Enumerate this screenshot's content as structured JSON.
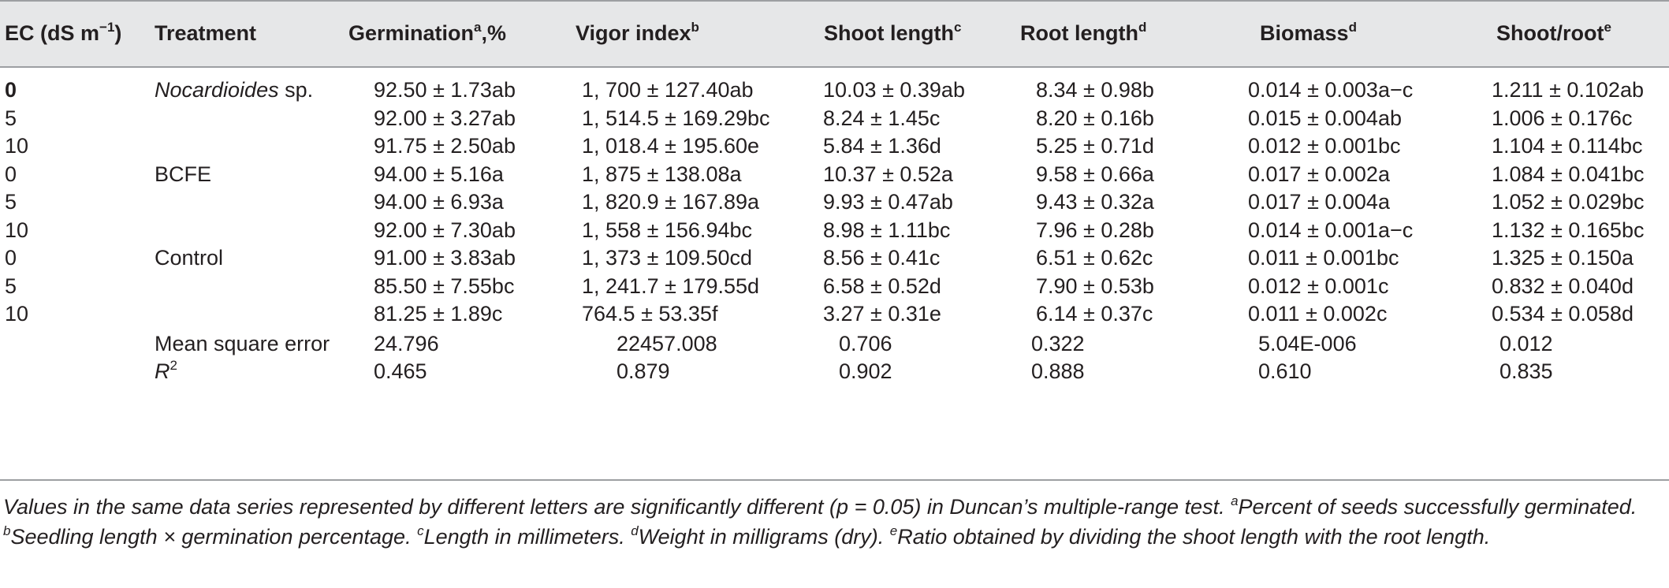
{
  "headers": {
    "ec": "EC (dS m",
    "ec_sup": "−1",
    "ec_close": ")",
    "treatment": "Treatment",
    "germination": "Germinationa",
    "germination_sup": "a",
    "germination_tail": ",%",
    "vigor": "Vigor index",
    "vigor_sup": "b",
    "shoot": "Shoot length",
    "shoot_sup": "c",
    "root": "Root length",
    "root_sup": "d",
    "biomass": "Biomass",
    "biomass_sup": "d",
    "ratio": "Shoot/root",
    "ratio_sup": "e"
  },
  "rows": [
    {
      "ec": "0",
      "treatment": "Nocardioides",
      "treatment_tail": " sp.",
      "germ": "92.50 ± 1.73ab",
      "vigor": "1, 700 ± 127.40ab",
      "shoot": "10.03 ± 0.39ab",
      "root": "8.34 ± 0.98b",
      "biomass": "0.014 ± 0.003a−c",
      "ratio": "1.211 ± 0.102ab"
    },
    {
      "ec": "5",
      "treatment": "",
      "treatment_tail": "",
      "germ": "92.00 ± 3.27ab",
      "vigor": "1, 514.5 ± 169.29bc",
      "shoot": "8.24 ± 1.45c",
      "root": "8.20 ± 0.16b",
      "biomass": "0.015 ± 0.004ab",
      "ratio": "1.006 ± 0.176c"
    },
    {
      "ec": "10",
      "treatment": "",
      "treatment_tail": "",
      "germ": "91.75 ± 2.50ab",
      "vigor": "1, 018.4 ± 195.60e",
      "shoot": "5.84 ± 1.36d",
      "root": "5.25 ± 0.71d",
      "biomass": "0.012 ± 0.001bc",
      "ratio": "1.104 ± 0.114bc"
    },
    {
      "ec": "0",
      "treatment": "BCFE",
      "treatment_tail": "",
      "germ": "94.00 ± 5.16a",
      "vigor": "1, 875 ± 138.08a",
      "shoot": "10.37 ± 0.52a",
      "root": "9.58 ± 0.66a",
      "biomass": "0.017 ± 0.002a",
      "ratio": "1.084 ± 0.041bc"
    },
    {
      "ec": "5",
      "treatment": "",
      "treatment_tail": "",
      "germ": "94.00 ± 6.93a",
      "vigor": "1, 820.9 ± 167.89a",
      "shoot": "9.93 ± 0.47ab",
      "root": "9.43 ± 0.32a",
      "biomass": "0.017 ± 0.004a",
      "ratio": "1.052 ± 0.029bc"
    },
    {
      "ec": "10",
      "treatment": "",
      "treatment_tail": "",
      "germ": "92.00 ± 7.30ab",
      "vigor": "1, 558 ± 156.94bc",
      "shoot": "8.98 ± 1.11bc",
      "root": "7.96 ± 0.28b",
      "biomass": "0.014 ± 0.001a−c",
      "ratio": "1.132 ± 0.165bc"
    },
    {
      "ec": "0",
      "treatment": "Control",
      "treatment_tail": "",
      "germ": "91.00 ± 3.83ab",
      "vigor": "1, 373 ± 109.50cd",
      "shoot": "8.56 ± 0.41c",
      "root": "6.51 ± 0.62c",
      "biomass": "0.011 ± 0.001bc",
      "ratio": "1.325 ± 0.150a"
    },
    {
      "ec": "5",
      "treatment": "",
      "treatment_tail": "",
      "germ": "85.50 ± 7.55bc",
      "vigor": "1, 241.7 ± 179.55d",
      "shoot": "6.58 ± 0.52d",
      "root": "7.90 ± 0.53b",
      "biomass": "0.012 ± 0.001c",
      "ratio": "0.832 ± 0.040d"
    },
    {
      "ec": "10",
      "treatment": "",
      "treatment_tail": "",
      "germ": "81.25 ± 1.89c",
      "vigor": "764.5 ± 53.35f",
      "shoot": "3.27 ± 0.31e",
      "root": "6.14 ± 0.37c",
      "biomass": "0.011 ± 0.002c",
      "ratio": "0.534 ± 0.058d"
    }
  ],
  "stats": [
    {
      "label": "Mean square error",
      "germ": "24.796",
      "vigor": "22457.008",
      "shoot": "0.706",
      "root": "0.322",
      "biomass": "5.04E-006",
      "ratio": "0.012"
    },
    {
      "label": "R",
      "label_sup": "2",
      "germ": "0.465",
      "vigor": "0.879",
      "shoot": "0.902",
      "root": "0.888",
      "biomass": "0.610",
      "ratio": "0.835"
    }
  ],
  "footnote": {
    "main": "Values in the same data series represented by different letters are significantly different (p = 0.05) in Duncan’s multiple-range test. ",
    "a_mark": "a",
    "a_text": "Percent of seeds successfully germinated. ",
    "b_mark": "b",
    "b_text": "Seedling length × germination percentage. ",
    "c_mark": "c",
    "c_text": "Length in millimeters. ",
    "d_mark": "d",
    "d_text": "Weight in milligrams (dry). ",
    "e_mark": "e",
    "e_text": "Ratio obtained by dividing the shoot length with the root length."
  }
}
